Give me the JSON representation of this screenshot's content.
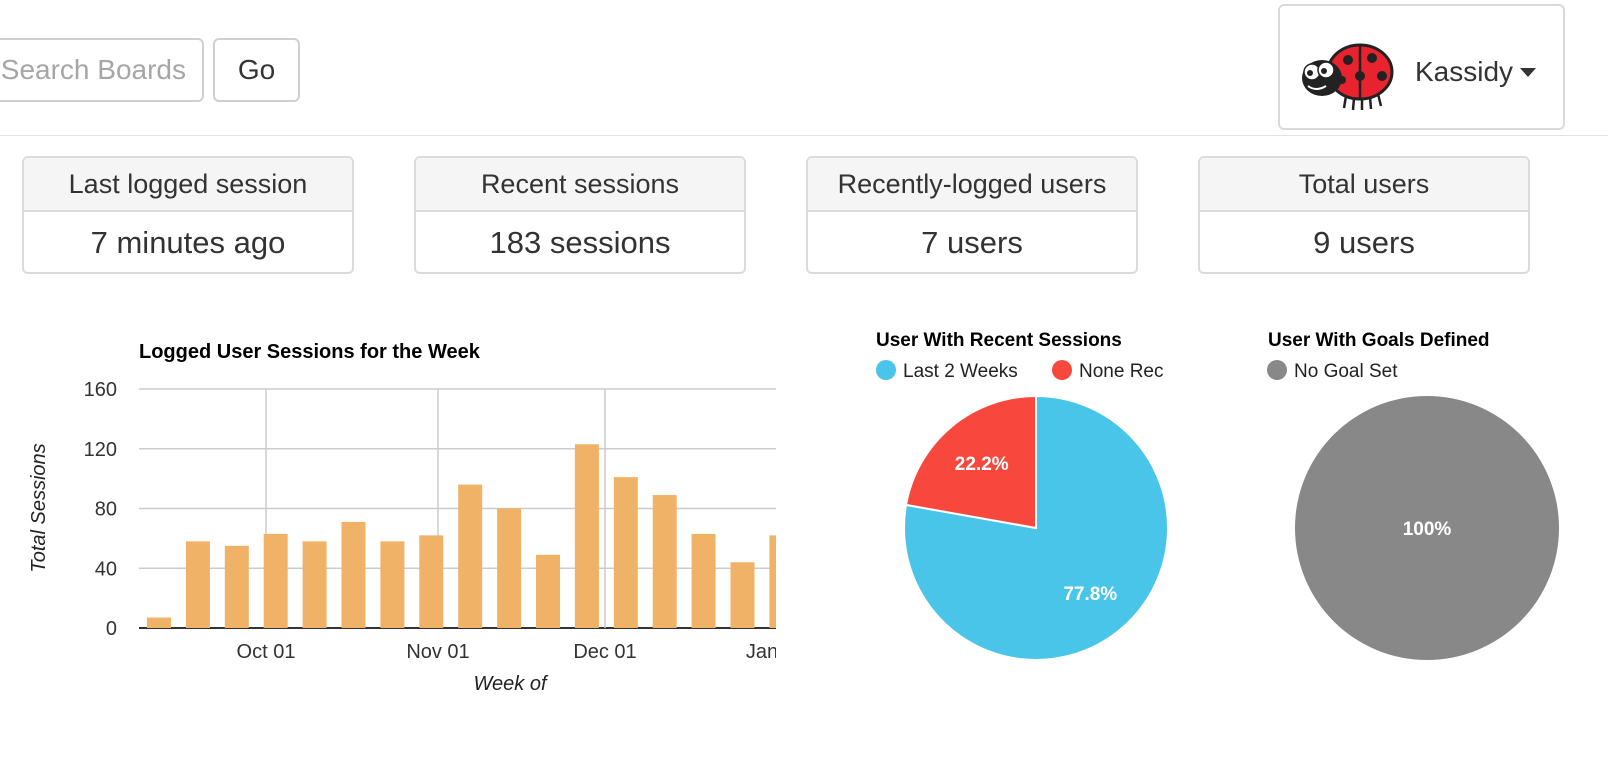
{
  "search": {
    "placeholder": "Search Boards",
    "go_label": "Go"
  },
  "user": {
    "name": "Kassidy",
    "avatar_icon": "ladybug-avatar"
  },
  "stats": [
    {
      "heading": "Last logged session",
      "value": "7 minutes ago"
    },
    {
      "heading": "Recent sessions",
      "value": "183 sessions"
    },
    {
      "heading": "Recently-logged users",
      "value": "7 users"
    },
    {
      "heading": "Total users",
      "value": "9 users"
    }
  ],
  "colors": {
    "bar": "#f0b266",
    "blue": "#48c5e8",
    "red": "#f8473c",
    "gray": "#888888"
  },
  "chart_data": [
    {
      "type": "bar",
      "title": "Logged User Sessions for the Week",
      "xlabel": "Week of",
      "ylabel": "Total Sessions",
      "ylim": [
        0,
        160
      ],
      "yticks": [
        "0",
        "40",
        "80",
        "120",
        "160"
      ],
      "xtick_labels": [
        "Oct 01",
        "Nov 01",
        "Dec 01",
        "Jan"
      ],
      "values": [
        7,
        58,
        55,
        63,
        58,
        71,
        58,
        62,
        96,
        80,
        49,
        123,
        101,
        89,
        63,
        44,
        62
      ],
      "grid": true
    },
    {
      "type": "pie",
      "title": "User With Recent Sessions",
      "legend": [
        "Last 2 Weeks",
        "None Rec"
      ],
      "slices": [
        {
          "label": "Last 2 Weeks",
          "value": 77.8,
          "text": "77.8%"
        },
        {
          "label": "None Recent",
          "value": 22.2,
          "text": "22.2%"
        }
      ]
    },
    {
      "type": "pie",
      "title": "User With Goals Defined",
      "legend": [
        "No Goal Set"
      ],
      "slices": [
        {
          "label": "No Goal Set",
          "value": 100,
          "text": "100%"
        }
      ]
    }
  ]
}
